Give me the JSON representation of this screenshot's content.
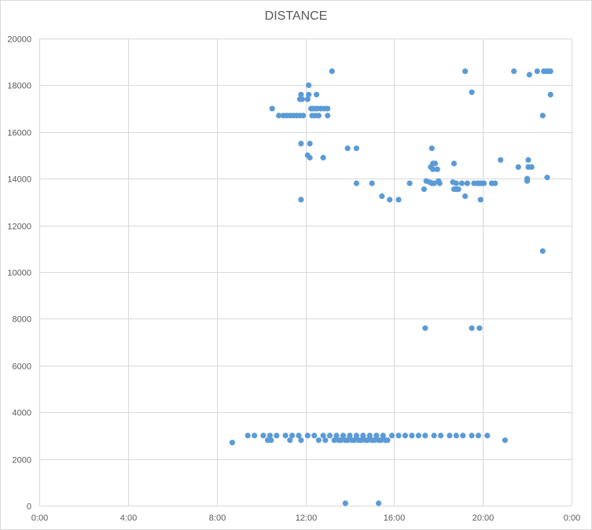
{
  "chart_data": {
    "type": "scatter",
    "title": "DISTANCE",
    "xlabel": "",
    "ylabel": "",
    "xlim": [
      0,
      24
    ],
    "ylim": [
      0,
      20000
    ],
    "x_ticks": [
      0,
      4,
      8,
      12,
      16,
      20,
      24
    ],
    "x_tick_labels": [
      "0:00",
      "4:00",
      "8:00",
      "12:00",
      "16:00",
      "20:00",
      "0:00"
    ],
    "y_ticks": [
      0,
      2000,
      4000,
      6000,
      8000,
      10000,
      12000,
      14000,
      16000,
      18000,
      20000
    ],
    "y_tick_labels": [
      "0",
      "2000",
      "4000",
      "6000",
      "8000",
      "10000",
      "12000",
      "14000",
      "16000",
      "18000",
      "20000"
    ],
    "grid": true,
    "legend": "none",
    "marker_color": "#5b9bd5",
    "points": [
      [
        8.7,
        2700
      ],
      [
        9.4,
        3000
      ],
      [
        9.7,
        3000
      ],
      [
        10.1,
        3000
      ],
      [
        10.3,
        2800
      ],
      [
        10.4,
        3000
      ],
      [
        10.45,
        2800
      ],
      [
        10.7,
        3000
      ],
      [
        11.1,
        3000
      ],
      [
        11.3,
        2800
      ],
      [
        11.4,
        3000
      ],
      [
        11.7,
        3000
      ],
      [
        11.8,
        2800
      ],
      [
        12.1,
        3000
      ],
      [
        12.4,
        3000
      ],
      [
        12.6,
        2800
      ],
      [
        12.8,
        3000
      ],
      [
        12.9,
        2800
      ],
      [
        13.1,
        3000
      ],
      [
        13.3,
        2800
      ],
      [
        13.4,
        3000
      ],
      [
        13.5,
        2800
      ],
      [
        13.6,
        2800
      ],
      [
        13.7,
        3000
      ],
      [
        13.8,
        2800
      ],
      [
        13.9,
        2800
      ],
      [
        14.0,
        3000
      ],
      [
        14.1,
        2800
      ],
      [
        14.2,
        2800
      ],
      [
        14.3,
        3000
      ],
      [
        14.4,
        2800
      ],
      [
        14.5,
        2800
      ],
      [
        14.6,
        3000
      ],
      [
        14.7,
        2800
      ],
      [
        14.8,
        2800
      ],
      [
        14.9,
        3000
      ],
      [
        15.0,
        2800
      ],
      [
        15.1,
        2800
      ],
      [
        15.2,
        3000
      ],
      [
        15.3,
        2800
      ],
      [
        15.4,
        2800
      ],
      [
        15.5,
        3000
      ],
      [
        15.6,
        2800
      ],
      [
        15.7,
        2800
      ],
      [
        15.9,
        3000
      ],
      [
        16.2,
        3000
      ],
      [
        16.5,
        3000
      ],
      [
        16.8,
        3000
      ],
      [
        17.1,
        3000
      ],
      [
        17.4,
        3000
      ],
      [
        17.8,
        3000
      ],
      [
        18.1,
        3000
      ],
      [
        18.5,
        3000
      ],
      [
        18.8,
        3000
      ],
      [
        19.1,
        3000
      ],
      [
        19.5,
        3000
      ],
      [
        19.8,
        3000
      ],
      [
        20.2,
        3000
      ],
      [
        21.0,
        2800
      ],
      [
        13.8,
        100
      ],
      [
        15.3,
        100
      ],
      [
        10.5,
        17000
      ],
      [
        10.8,
        16700
      ],
      [
        11.0,
        16700
      ],
      [
        11.15,
        16700
      ],
      [
        11.3,
        16700
      ],
      [
        11.45,
        16700
      ],
      [
        11.6,
        16700
      ],
      [
        11.75,
        16700
      ],
      [
        11.9,
        16700
      ],
      [
        11.75,
        17400
      ],
      [
        11.85,
        17400
      ],
      [
        11.8,
        17600
      ],
      [
        12.15,
        18000
      ],
      [
        12.1,
        17400
      ],
      [
        12.15,
        17600
      ],
      [
        12.25,
        17000
      ],
      [
        12.35,
        17000
      ],
      [
        12.45,
        17000
      ],
      [
        12.55,
        17000
      ],
      [
        12.7,
        17000
      ],
      [
        12.85,
        17000
      ],
      [
        13.0,
        17000
      ],
      [
        12.3,
        16700
      ],
      [
        12.45,
        16700
      ],
      [
        12.6,
        16700
      ],
      [
        13.0,
        16700
      ],
      [
        12.5,
        17600
      ],
      [
        13.2,
        18600
      ],
      [
        11.8,
        15500
      ],
      [
        12.2,
        15500
      ],
      [
        12.1,
        15000
      ],
      [
        12.2,
        14900
      ],
      [
        12.8,
        14900
      ],
      [
        11.8,
        13100
      ],
      [
        13.9,
        15300
      ],
      [
        14.3,
        15300
      ],
      [
        14.3,
        13800
      ],
      [
        15.0,
        13800
      ],
      [
        15.45,
        13250
      ],
      [
        15.8,
        13100
      ],
      [
        16.2,
        13100
      ],
      [
        16.7,
        13800
      ],
      [
        17.35,
        13550
      ],
      [
        17.45,
        13900
      ],
      [
        17.6,
        13850
      ],
      [
        17.7,
        13800
      ],
      [
        17.65,
        14500
      ],
      [
        17.75,
        14400
      ],
      [
        17.75,
        14650
      ],
      [
        17.85,
        14650
      ],
      [
        17.8,
        13800
      ],
      [
        17.95,
        14400
      ],
      [
        18.0,
        13900
      ],
      [
        18.05,
        13800
      ],
      [
        17.7,
        15300
      ],
      [
        17.4,
        7600
      ],
      [
        18.65,
        13850
      ],
      [
        18.7,
        14650
      ],
      [
        18.8,
        13800
      ],
      [
        18.7,
        13550
      ],
      [
        18.8,
        13550
      ],
      [
        18.9,
        13550
      ],
      [
        19.05,
        13800
      ],
      [
        19.2,
        13250
      ],
      [
        19.3,
        13800
      ],
      [
        19.6,
        13800
      ],
      [
        19.75,
        13800
      ],
      [
        19.85,
        13800
      ],
      [
        19.95,
        13800
      ],
      [
        20.05,
        13800
      ],
      [
        19.9,
        13100
      ],
      [
        20.4,
        13800
      ],
      [
        20.55,
        13800
      ],
      [
        20.8,
        14800
      ],
      [
        19.2,
        18600
      ],
      [
        19.5,
        17700
      ],
      [
        19.5,
        7600
      ],
      [
        19.85,
        7600
      ],
      [
        21.4,
        18600
      ],
      [
        21.6,
        14500
      ],
      [
        22.05,
        14800
      ],
      [
        22.05,
        14500
      ],
      [
        22.2,
        14500
      ],
      [
        22.0,
        14000
      ],
      [
        22.0,
        13900
      ],
      [
        22.1,
        18450
      ],
      [
        22.45,
        18600
      ],
      [
        22.75,
        18600
      ],
      [
        22.85,
        18600
      ],
      [
        22.95,
        18600
      ],
      [
        23.05,
        18600
      ],
      [
        22.7,
        16700
      ],
      [
        22.9,
        14050
      ],
      [
        23.05,
        17600
      ],
      [
        22.7,
        10900
      ]
    ]
  }
}
